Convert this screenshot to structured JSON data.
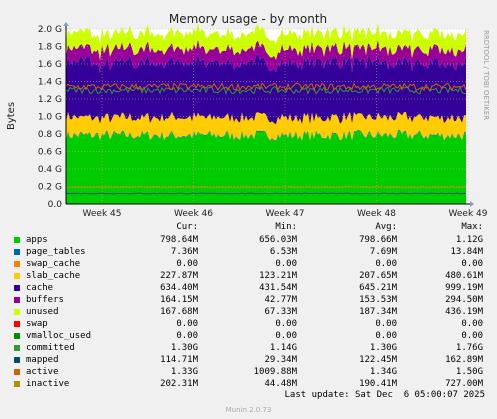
{
  "chart_data": {
    "type": "area",
    "title": "Memory usage - by month",
    "ylabel": "Bytes",
    "side_label": "RRDTOOL / TOBI OETIKER",
    "ylim": [
      0,
      2.0
    ],
    "y_unit": "G",
    "y_ticks": [
      "0.0",
      "0.2 G",
      "0.4 G",
      "0.6 G",
      "0.8 G",
      "1.0 G",
      "1.2 G",
      "1.4 G",
      "1.6 G",
      "1.8 G",
      "2.0 G"
    ],
    "y_tick_values": [
      0,
      0.2,
      0.4,
      0.6,
      0.8,
      1.0,
      1.2,
      1.4,
      1.6,
      1.8,
      2.0
    ],
    "x_ticks": [
      "Week 45",
      "Week 46",
      "Week 47",
      "Week 48",
      "Week 49"
    ],
    "stacked_series_avg_gb": [
      {
        "name": "apps",
        "color": "#00cc00",
        "value": 0.78
      },
      {
        "name": "page_tables",
        "color": "#0066b3",
        "value": 0.0075
      },
      {
        "name": "swap_cache",
        "color": "#ff8000",
        "value": 0.0
      },
      {
        "name": "slab_cache",
        "color": "#ffcc00",
        "value": 0.2
      },
      {
        "name": "cache",
        "color": "#330099",
        "value": 0.63
      },
      {
        "name": "buffers",
        "color": "#990099",
        "value": 0.15
      },
      {
        "name": "unused",
        "color": "#ccff00",
        "value": 0.18
      }
    ],
    "line_series_avg_gb": [
      {
        "name": "committed",
        "color": "#339933",
        "value": 1.3
      },
      {
        "name": "mapped",
        "color": "#004d66",
        "value": 0.12
      },
      {
        "name": "active",
        "color": "#cc6600",
        "value": 1.34
      },
      {
        "name": "inactive",
        "color": "#b38f00",
        "value": 0.19
      }
    ]
  },
  "legend": {
    "headers": [
      "Cur:",
      "Min:",
      "Avg:",
      "Max:"
    ],
    "rows": [
      {
        "name": "apps",
        "color": "#00cc00",
        "cur": "798.64M",
        "min": "656.03M",
        "avg": "798.66M",
        "max": "1.12G"
      },
      {
        "name": "page_tables",
        "color": "#0066b3",
        "cur": "7.36M",
        "min": "6.53M",
        "avg": "7.69M",
        "max": "13.84M"
      },
      {
        "name": "swap_cache",
        "color": "#ff8000",
        "cur": "0.00",
        "min": "0.00",
        "avg": "0.00",
        "max": "0.00"
      },
      {
        "name": "slab_cache",
        "color": "#ffcc00",
        "cur": "227.87M",
        "min": "123.21M",
        "avg": "207.65M",
        "max": "480.61M"
      },
      {
        "name": "cache",
        "color": "#330099",
        "cur": "634.40M",
        "min": "431.54M",
        "avg": "645.21M",
        "max": "999.19M"
      },
      {
        "name": "buffers",
        "color": "#990099",
        "cur": "164.15M",
        "min": "42.77M",
        "avg": "153.53M",
        "max": "294.50M"
      },
      {
        "name": "unused",
        "color": "#ccff00",
        "cur": "167.68M",
        "min": "67.33M",
        "avg": "187.34M",
        "max": "436.19M"
      },
      {
        "name": "swap",
        "color": "#ff0000",
        "cur": "0.00",
        "min": "0.00",
        "avg": "0.00",
        "max": "0.00"
      },
      {
        "name": "vmalloc_used",
        "color": "#008f00",
        "cur": "0.00",
        "min": "0.00",
        "avg": "0.00",
        "max": "0.00"
      },
      {
        "name": "committed",
        "color": "#339933",
        "cur": "1.30G",
        "min": "1.14G",
        "avg": "1.30G",
        "max": "1.76G"
      },
      {
        "name": "mapped",
        "color": "#004d66",
        "cur": "114.71M",
        "min": "29.34M",
        "avg": "122.45M",
        "max": "162.89M"
      },
      {
        "name": "active",
        "color": "#cc6600",
        "cur": "1.33G",
        "min": "1009.88M",
        "avg": "1.34G",
        "max": "1.50G"
      },
      {
        "name": "inactive",
        "color": "#b38f00",
        "cur": "202.31M",
        "min": "44.48M",
        "avg": "190.41M",
        "max": "727.00M"
      }
    ]
  },
  "last_update": "Last update: Sat Dec  6 05:00:07 2025",
  "footer": "Munin 2.0.73"
}
